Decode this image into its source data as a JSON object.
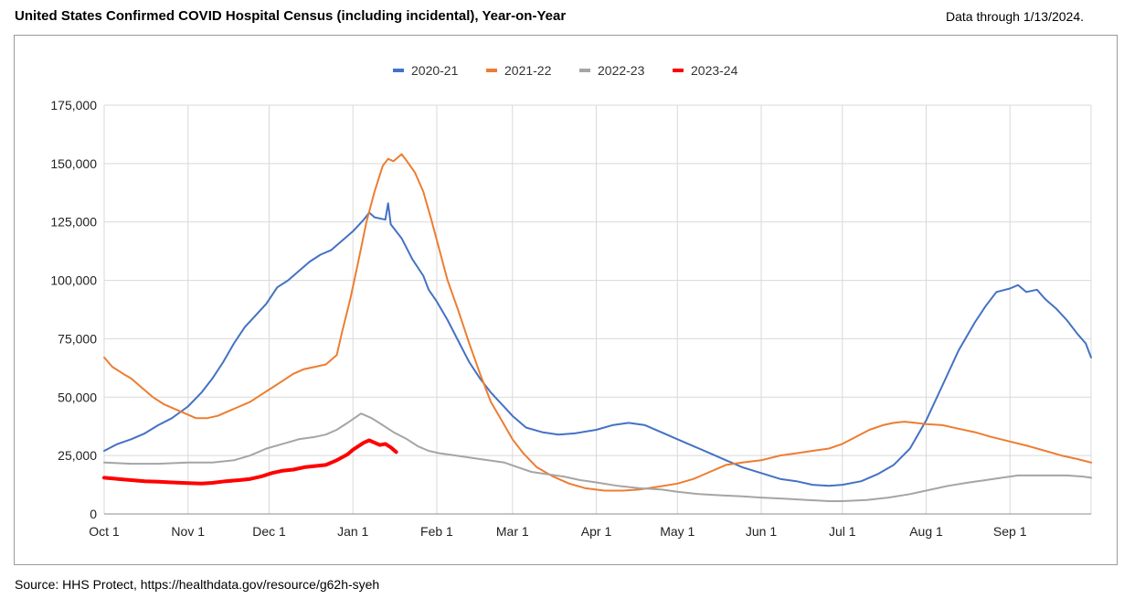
{
  "title": "United States Confirmed COVID Hospital Census (including incidental), Year-on-Year",
  "data_through": "Data through 1/13/2024.",
  "source": "Source: HHS Protect, https://healthdata.gov/resource/g62h-syeh",
  "chart_data": {
    "type": "line",
    "title": "United States Confirmed COVID Hospital Census (including incidental), Year-on-Year",
    "xlabel": "",
    "ylabel": "",
    "x_unit": "days since Oct 1",
    "xlim": [
      0,
      365
    ],
    "ylim": [
      0,
      175000
    ],
    "y_ticks": [
      0,
      25000,
      50000,
      75000,
      100000,
      125000,
      150000,
      175000
    ],
    "y_tick_labels": [
      "0",
      "25,000",
      "50,000",
      "75,000",
      "100,000",
      "125,000",
      "150,000",
      "175,000"
    ],
    "x_tick_days": [
      0,
      31,
      61,
      92,
      123,
      151,
      182,
      212,
      243,
      273,
      304,
      335
    ],
    "x_tick_labels": [
      "Oct 1",
      "Nov 1",
      "Dec 1",
      "Jan 1",
      "Feb 1",
      "Mar 1",
      "Apr 1",
      "May 1",
      "Jun 1",
      "Jul 1",
      "Aug 1",
      "Sep 1"
    ],
    "grid": true,
    "legend_position": "top",
    "series": [
      {
        "name": "2020-21",
        "color": "#4472c4",
        "width": 2,
        "points": [
          [
            0,
            27000
          ],
          [
            5,
            30000
          ],
          [
            10,
            32000
          ],
          [
            15,
            34500
          ],
          [
            20,
            38000
          ],
          [
            25,
            41000
          ],
          [
            31,
            46000
          ],
          [
            36,
            52000
          ],
          [
            40,
            58000
          ],
          [
            44,
            65000
          ],
          [
            48,
            73000
          ],
          [
            52,
            80000
          ],
          [
            56,
            85000
          ],
          [
            60,
            90000
          ],
          [
            64,
            97000
          ],
          [
            68,
            100000
          ],
          [
            72,
            104000
          ],
          [
            76,
            108000
          ],
          [
            80,
            111000
          ],
          [
            84,
            113000
          ],
          [
            88,
            117000
          ],
          [
            92,
            121000
          ],
          [
            96,
            126000
          ],
          [
            98,
            129000
          ],
          [
            100,
            127000
          ],
          [
            104,
            126000
          ],
          [
            105,
            133000
          ],
          [
            106,
            124000
          ],
          [
            110,
            118000
          ],
          [
            114,
            109000
          ],
          [
            118,
            102000
          ],
          [
            120,
            96000
          ],
          [
            123,
            91000
          ],
          [
            127,
            83000
          ],
          [
            131,
            74000
          ],
          [
            135,
            65000
          ],
          [
            139,
            58000
          ],
          [
            143,
            52000
          ],
          [
            147,
            47000
          ],
          [
            151,
            42000
          ],
          [
            156,
            37000
          ],
          [
            162,
            35000
          ],
          [
            168,
            34000
          ],
          [
            174,
            34500
          ],
          [
            182,
            36000
          ],
          [
            188,
            38000
          ],
          [
            194,
            39000
          ],
          [
            200,
            38000
          ],
          [
            206,
            35000
          ],
          [
            212,
            32000
          ],
          [
            218,
            29000
          ],
          [
            224,
            26000
          ],
          [
            230,
            23000
          ],
          [
            236,
            20000
          ],
          [
            243,
            17500
          ],
          [
            250,
            15000
          ],
          [
            256,
            14000
          ],
          [
            262,
            12500
          ],
          [
            268,
            12000
          ],
          [
            273,
            12500
          ],
          [
            280,
            14000
          ],
          [
            286,
            17000
          ],
          [
            292,
            21000
          ],
          [
            298,
            28000
          ],
          [
            304,
            40000
          ],
          [
            310,
            55000
          ],
          [
            316,
            70000
          ],
          [
            322,
            82000
          ],
          [
            326,
            89000
          ],
          [
            330,
            95000
          ],
          [
            335,
            96500
          ],
          [
            338,
            98000
          ],
          [
            341,
            95000
          ],
          [
            345,
            96000
          ],
          [
            348,
            92000
          ],
          [
            352,
            88000
          ],
          [
            356,
            83000
          ],
          [
            360,
            77000
          ],
          [
            363,
            73000
          ],
          [
            365,
            67000
          ]
        ]
      },
      {
        "name": "2021-22",
        "color": "#ed7d31",
        "width": 2,
        "points": [
          [
            0,
            67000
          ],
          [
            3,
            63000
          ],
          [
            7,
            60000
          ],
          [
            10,
            58000
          ],
          [
            14,
            54000
          ],
          [
            18,
            50000
          ],
          [
            22,
            47000
          ],
          [
            26,
            45000
          ],
          [
            30,
            43000
          ],
          [
            34,
            41000
          ],
          [
            38,
            41000
          ],
          [
            42,
            42000
          ],
          [
            46,
            44000
          ],
          [
            50,
            46000
          ],
          [
            54,
            48000
          ],
          [
            58,
            51000
          ],
          [
            62,
            54000
          ],
          [
            66,
            57000
          ],
          [
            70,
            60000
          ],
          [
            74,
            62000
          ],
          [
            78,
            63000
          ],
          [
            82,
            64000
          ],
          [
            86,
            68000
          ],
          [
            88,
            78000
          ],
          [
            91,
            92000
          ],
          [
            94,
            108000
          ],
          [
            97,
            125000
          ],
          [
            100,
            138000
          ],
          [
            103,
            149000
          ],
          [
            105,
            152000
          ],
          [
            107,
            151000
          ],
          [
            110,
            154000
          ],
          [
            112,
            151000
          ],
          [
            115,
            146000
          ],
          [
            118,
            138000
          ],
          [
            121,
            126000
          ],
          [
            124,
            113000
          ],
          [
            127,
            100000
          ],
          [
            131,
            87000
          ],
          [
            135,
            73000
          ],
          [
            139,
            60000
          ],
          [
            143,
            48000
          ],
          [
            147,
            40000
          ],
          [
            151,
            32000
          ],
          [
            155,
            26000
          ],
          [
            160,
            20000
          ],
          [
            166,
            16000
          ],
          [
            172,
            13000
          ],
          [
            178,
            11000
          ],
          [
            185,
            10000
          ],
          [
            192,
            10000
          ],
          [
            198,
            10500
          ],
          [
            204,
            11500
          ],
          [
            212,
            13000
          ],
          [
            218,
            15000
          ],
          [
            224,
            18000
          ],
          [
            230,
            21000
          ],
          [
            236,
            22000
          ],
          [
            243,
            23000
          ],
          [
            250,
            25000
          ],
          [
            256,
            26000
          ],
          [
            262,
            27000
          ],
          [
            268,
            28000
          ],
          [
            273,
            30000
          ],
          [
            278,
            33000
          ],
          [
            283,
            36000
          ],
          [
            288,
            38000
          ],
          [
            292,
            39000
          ],
          [
            296,
            39500
          ],
          [
            300,
            39000
          ],
          [
            304,
            38500
          ],
          [
            310,
            38000
          ],
          [
            316,
            36500
          ],
          [
            322,
            35000
          ],
          [
            328,
            33000
          ],
          [
            335,
            31000
          ],
          [
            342,
            29000
          ],
          [
            348,
            27000
          ],
          [
            354,
            25000
          ],
          [
            360,
            23500
          ],
          [
            365,
            22000
          ]
        ]
      },
      {
        "name": "2022-23",
        "color": "#a5a5a5",
        "width": 2,
        "points": [
          [
            0,
            22000
          ],
          [
            10,
            21500
          ],
          [
            20,
            21500
          ],
          [
            31,
            22000
          ],
          [
            40,
            22000
          ],
          [
            48,
            23000
          ],
          [
            54,
            25000
          ],
          [
            60,
            28000
          ],
          [
            66,
            30000
          ],
          [
            72,
            32000
          ],
          [
            78,
            33000
          ],
          [
            82,
            34000
          ],
          [
            86,
            36000
          ],
          [
            90,
            39000
          ],
          [
            95,
            43000
          ],
          [
            99,
            41000
          ],
          [
            103,
            38000
          ],
          [
            107,
            35000
          ],
          [
            112,
            32000
          ],
          [
            116,
            29000
          ],
          [
            120,
            27000
          ],
          [
            124,
            26000
          ],
          [
            130,
            25000
          ],
          [
            136,
            24000
          ],
          [
            142,
            23000
          ],
          [
            148,
            22000
          ],
          [
            153,
            20000
          ],
          [
            158,
            18000
          ],
          [
            164,
            17000
          ],
          [
            170,
            16000
          ],
          [
            176,
            14500
          ],
          [
            182,
            13500
          ],
          [
            190,
            12000
          ],
          [
            198,
            11000
          ],
          [
            206,
            10500
          ],
          [
            212,
            9500
          ],
          [
            220,
            8500
          ],
          [
            228,
            8000
          ],
          [
            236,
            7500
          ],
          [
            243,
            7000
          ],
          [
            252,
            6500
          ],
          [
            260,
            6000
          ],
          [
            268,
            5500
          ],
          [
            273,
            5500
          ],
          [
            282,
            6000
          ],
          [
            290,
            7000
          ],
          [
            298,
            8500
          ],
          [
            304,
            10000
          ],
          [
            312,
            12000
          ],
          [
            320,
            13500
          ],
          [
            326,
            14500
          ],
          [
            332,
            15500
          ],
          [
            338,
            16500
          ],
          [
            344,
            16500
          ],
          [
            350,
            16500
          ],
          [
            356,
            16500
          ],
          [
            362,
            16000
          ],
          [
            365,
            15500
          ]
        ]
      },
      {
        "name": "2023-24",
        "color": "#ff0000",
        "width": 4,
        "points": [
          [
            0,
            15500
          ],
          [
            5,
            15000
          ],
          [
            10,
            14500
          ],
          [
            15,
            14000
          ],
          [
            20,
            13800
          ],
          [
            25,
            13500
          ],
          [
            31,
            13200
          ],
          [
            36,
            13000
          ],
          [
            40,
            13300
          ],
          [
            45,
            14000
          ],
          [
            50,
            14500
          ],
          [
            54,
            15000
          ],
          [
            58,
            16000
          ],
          [
            62,
            17500
          ],
          [
            66,
            18500
          ],
          [
            70,
            19000
          ],
          [
            74,
            20000
          ],
          [
            78,
            20500
          ],
          [
            82,
            21000
          ],
          [
            86,
            23000
          ],
          [
            90,
            25500
          ],
          [
            92,
            27500
          ],
          [
            94,
            29000
          ],
          [
            96,
            30500
          ],
          [
            98,
            31500
          ],
          [
            100,
            30500
          ],
          [
            102,
            29500
          ],
          [
            104,
            30000
          ],
          [
            106,
            28500
          ],
          [
            108,
            26500
          ]
        ]
      }
    ]
  }
}
